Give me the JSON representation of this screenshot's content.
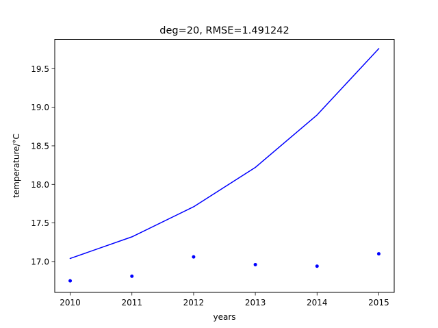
{
  "chart_data": {
    "type": "line",
    "title": "deg=20, RMSE=1.491242",
    "xlabel": "years",
    "ylabel": "temperature/°C",
    "xlim": [
      2009.75,
      2015.25
    ],
    "ylim": [
      16.6,
      19.88
    ],
    "xticks": [
      2010,
      2011,
      2012,
      2013,
      2014,
      2015
    ],
    "yticks": [
      17.0,
      17.5,
      18.0,
      18.5,
      19.0,
      19.5
    ],
    "ytick_labels": [
      "17.0",
      "17.5",
      "18.0",
      "18.5",
      "19.0",
      "19.5"
    ],
    "grid": false,
    "series": [
      {
        "kind": "line",
        "color": "#0000ff",
        "x": [
          2010,
          2011,
          2012,
          2013,
          2014,
          2015
        ],
        "y": [
          17.04,
          17.32,
          17.71,
          18.22,
          18.9,
          19.76
        ]
      },
      {
        "kind": "scatter",
        "color": "#0000ff",
        "x": [
          2010,
          2011,
          2012,
          2013,
          2014,
          2015
        ],
        "y": [
          16.75,
          16.81,
          17.06,
          16.96,
          16.94,
          17.1
        ]
      }
    ]
  }
}
